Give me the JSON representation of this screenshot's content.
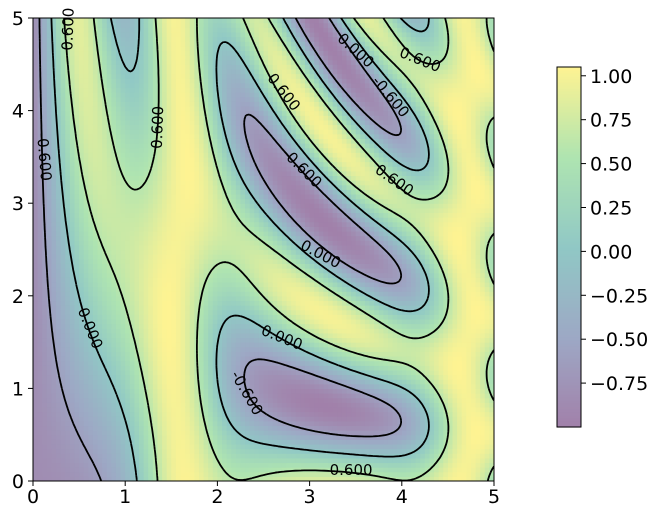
{
  "chart_data": {
    "type": "heatmap",
    "title": "",
    "xlabel": "",
    "ylabel": "",
    "xlim": [
      0,
      5
    ],
    "ylim": [
      0,
      5
    ],
    "x_ticks": [
      0,
      1,
      2,
      3,
      4,
      5
    ],
    "y_ticks": [
      0,
      1,
      2,
      3,
      4,
      5
    ],
    "x_tick_labels": [
      "0",
      "1",
      "2",
      "3",
      "4",
      "5"
    ],
    "y_tick_labels": [
      "0",
      "1",
      "2",
      "3",
      "4",
      "5"
    ],
    "function": "sin(x)^10 + cos(10 + y*x) * cos(x)",
    "colormap": "viridis",
    "alpha": 0.5,
    "contour_levels": [
      -0.6,
      0.0,
      0.6
    ],
    "contour_labels": [
      {
        "text": "0.600",
        "x": 0.38,
        "y": 4.88,
        "angle": -88
      },
      {
        "text": "-0.600",
        "x": 0.12,
        "y": 3.5,
        "angle": 85
      },
      {
        "text": "0.600",
        "x": 1.35,
        "y": 3.82,
        "angle": -88
      },
      {
        "text": "0.000",
        "x": 0.62,
        "y": 1.65,
        "angle": 68
      },
      {
        "text": "0.600",
        "x": 2.72,
        "y": 4.2,
        "angle": 52
      },
      {
        "text": "0.000",
        "x": 3.5,
        "y": 4.65,
        "angle": 42
      },
      {
        "text": "0.600",
        "x": 4.2,
        "y": 4.55,
        "angle": 22
      },
      {
        "text": "-0.600",
        "x": 3.88,
        "y": 4.15,
        "angle": 50
      },
      {
        "text": "-0.600",
        "x": 2.92,
        "y": 3.38,
        "angle": 45
      },
      {
        "text": "0.600",
        "x": 3.92,
        "y": 3.25,
        "angle": 35
      },
      {
        "text": "0.000",
        "x": 3.12,
        "y": 2.45,
        "angle": 28
      },
      {
        "text": "0.000",
        "x": 2.7,
        "y": 1.55,
        "angle": 22
      },
      {
        "text": "-0.600",
        "x": 2.32,
        "y": 0.95,
        "angle": 60
      },
      {
        "text": "0.600",
        "x": 3.45,
        "y": 0.12,
        "angle": 0
      }
    ],
    "colorbar": {
      "ticks": [
        -0.75,
        -0.5,
        -0.25,
        0.0,
        0.25,
        0.5,
        0.75,
        1.0
      ],
      "tick_labels": [
        "−0.75",
        "−0.50",
        "−0.25",
        "0.00",
        "0.25",
        "0.50",
        "0.75",
        "1.00"
      ],
      "range": [
        -1.0,
        1.05
      ]
    }
  }
}
